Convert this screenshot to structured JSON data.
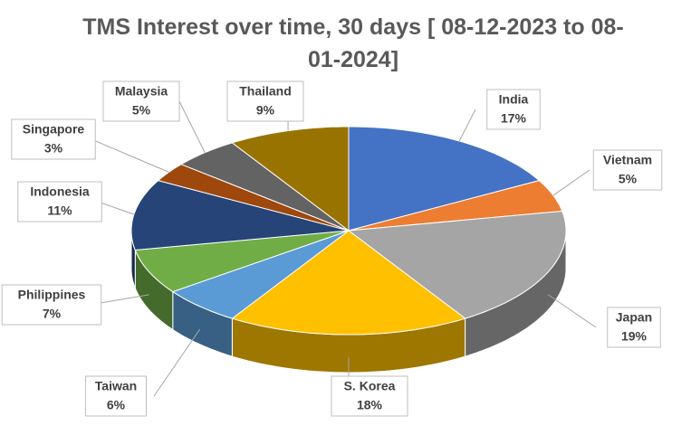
{
  "chart_data": {
    "type": "pie3d",
    "title": "TMS Interest over time, 30 days [ 08-12-2023 to 08-01-2024]",
    "categories": [
      "India",
      "Vietnam",
      "Japan",
      "S. Korea",
      "Taiwan",
      "Philippines",
      "Indonesia",
      "Singapore",
      "Malaysia",
      "Thailand"
    ],
    "values": [
      17,
      5,
      19,
      18,
      6,
      7,
      11,
      3,
      5,
      9
    ],
    "value_labels": [
      "17%",
      "5%",
      "19%",
      "18%",
      "6%",
      "7%",
      "11%",
      "3%",
      "5%",
      "9%"
    ],
    "colors": [
      "#4472c4",
      "#ed7d31",
      "#a5a5a5",
      "#ffc000",
      "#5b9bd5",
      "#70ad47",
      "#264478",
      "#9e480e",
      "#636363",
      "#997300"
    ]
  }
}
